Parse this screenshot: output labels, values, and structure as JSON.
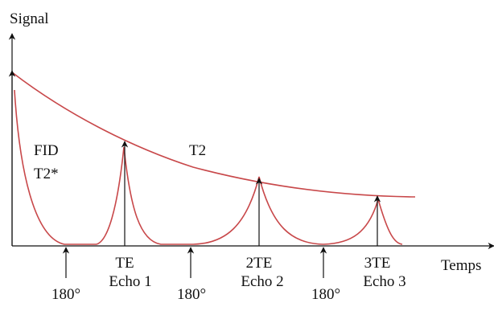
{
  "colors": {
    "curve": "#c8484a",
    "ink": "#111111"
  },
  "labels": {
    "y_axis": "Signal",
    "x_axis": "Temps",
    "fid": "FID",
    "t2_star": "T2*",
    "t2": "T2",
    "te": "TE",
    "echo1": "Echo 1",
    "te2": "2TE",
    "echo2": "Echo 2",
    "te3": "3TE",
    "echo3": "Echo 3",
    "pulse_180_a": "180°",
    "pulse_180_b": "180°",
    "pulse_180_c": "180°"
  }
}
